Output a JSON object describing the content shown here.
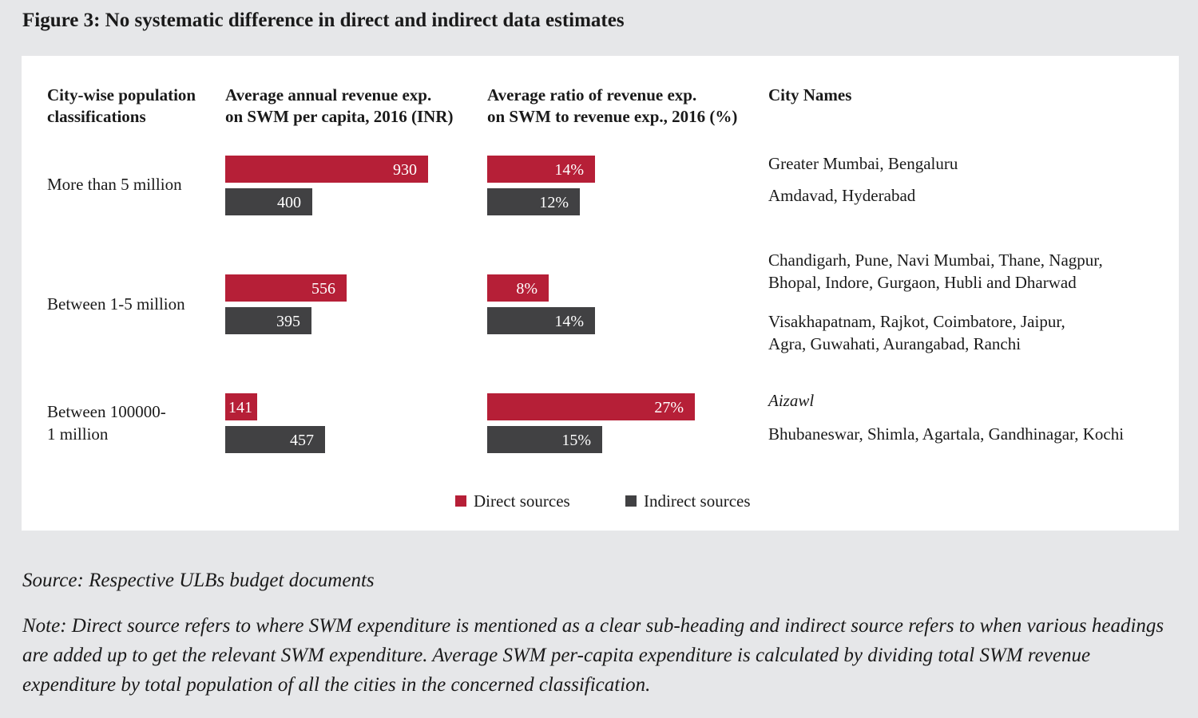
{
  "figure_title": "Figure 3: No systematic difference in direct and indirect data estimates",
  "headers": {
    "classification": [
      "City-wise population",
      "classifications"
    ],
    "per_capita": [
      "Average annual revenue exp.",
      "on SWM per capita, 2016 (INR)"
    ],
    "ratio": [
      "Average ratio of revenue exp.",
      "on SWM to revenue exp., 2016 (%)"
    ],
    "cities": "City Names"
  },
  "legend": {
    "direct": {
      "label": "Direct sources",
      "color": "#b61f37"
    },
    "indirect": {
      "label": "Indirect sources",
      "color": "#414143"
    }
  },
  "source": "Source: Respective ULBs budget documents",
  "note": "Note: Direct source refers to where SWM expenditure is mentioned as a clear sub-heading and indirect source refers to when various headings are added up to get the relevant SWM expenditure. Average SWM per-capita expenditure is calculated by dividing total SWM revenue expenditure by total population of all the cities in the concerned classification.",
  "chart_data": [
    {
      "type": "bar",
      "orientation": "horizontal",
      "title": "Average annual revenue exp. on SWM per capita, 2016 (INR)",
      "categories": [
        "More than 5 million",
        "Between 1-5 million",
        "Between 100000- 1 million"
      ],
      "series": [
        {
          "name": "Direct sources",
          "values": [
            930,
            556,
            141
          ],
          "labels": [
            "930",
            "556",
            "141"
          ]
        },
        {
          "name": "Indirect sources",
          "values": [
            400,
            395,
            457
          ],
          "labels": [
            "400",
            "395",
            "457"
          ]
        }
      ],
      "xlim": [
        0,
        930
      ],
      "grid": false,
      "legend_position": "bottom"
    },
    {
      "type": "bar",
      "orientation": "horizontal",
      "title": "Average ratio of revenue exp. on SWM to revenue exp., 2016 (%)",
      "categories": [
        "More than 5 million",
        "Between 1-5 million",
        "Between 100000- 1 million"
      ],
      "series": [
        {
          "name": "Direct sources",
          "values": [
            14,
            8,
            27
          ],
          "labels": [
            "14%",
            "8%",
            "27%"
          ]
        },
        {
          "name": "Indirect sources",
          "values": [
            12,
            14,
            15
          ],
          "labels": [
            "12%",
            "14%",
            "15%"
          ]
        }
      ],
      "xlim": [
        0,
        27
      ],
      "grid": false,
      "legend_position": "bottom"
    }
  ],
  "rows": [
    {
      "label": [
        "More than 5 million"
      ],
      "direct_cities": [
        "Greater Mumbai, Bengaluru"
      ],
      "indirect_cities": [
        "Amdavad, Hyderabad"
      ]
    },
    {
      "label": [
        "Between 1-5 million"
      ],
      "direct_cities": [
        "Chandigarh, Pune, Navi Mumbai, Thane, Nagpur,",
        "Bhopal, Indore, Gurgaon, Hubli and Dharwad"
      ],
      "indirect_cities": [
        "Visakhapatnam, Rajkot, Coimbatore, Jaipur,",
        "Agra, Guwahati, Aurangabad, Ranchi"
      ]
    },
    {
      "label": [
        "Between 100000-",
        "1 million"
      ],
      "direct_cities": [
        "Aizawl"
      ],
      "indirect_cities": [
        "Bhubaneswar, Shimla, Agartala, Gandhinagar, Kochi"
      ]
    }
  ]
}
